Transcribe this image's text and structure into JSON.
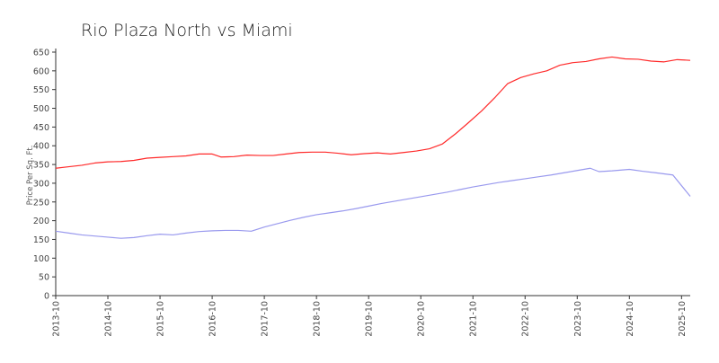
{
  "chart_data": {
    "type": "line",
    "title": "Rio Plaza North vs Miami",
    "xlabel": "",
    "ylabel": "Price Per Sq. Ft.",
    "ylim": [
      0,
      650
    ],
    "xlim": [
      "2013-10",
      "2025-12"
    ],
    "yticks": [
      0,
      50,
      100,
      150,
      200,
      250,
      300,
      350,
      400,
      450,
      500,
      550,
      600,
      650
    ],
    "xticks": [
      "2013-10",
      "2014-10",
      "2015-10",
      "2016-10",
      "2017-10",
      "2018-10",
      "2019-10",
      "2020-10",
      "2021-10",
      "2022-10",
      "2023-10",
      "2024-10",
      "2025-10"
    ],
    "grid": false,
    "legend": "none",
    "series": [
      {
        "color": "#ff2a2a",
        "points": [
          [
            "2013-10",
            340
          ],
          [
            "2014-01",
            344
          ],
          [
            "2014-04",
            348
          ],
          [
            "2014-07",
            354
          ],
          [
            "2014-10",
            357
          ],
          [
            "2015-01",
            358
          ],
          [
            "2015-04",
            361
          ],
          [
            "2015-07",
            367
          ],
          [
            "2015-10",
            369
          ],
          [
            "2016-01",
            371
          ],
          [
            "2016-04",
            373
          ],
          [
            "2016-07",
            378
          ],
          [
            "2016-10",
            378
          ],
          [
            "2016-12",
            370
          ],
          [
            "2017-03",
            371
          ],
          [
            "2017-06",
            375
          ],
          [
            "2017-09",
            374
          ],
          [
            "2017-12",
            374
          ],
          [
            "2018-03",
            378
          ],
          [
            "2018-06",
            382
          ],
          [
            "2018-09",
            383
          ],
          [
            "2018-12",
            383
          ],
          [
            "2019-03",
            380
          ],
          [
            "2019-06",
            376
          ],
          [
            "2019-09",
            379
          ],
          [
            "2019-12",
            381
          ],
          [
            "2020-03",
            378
          ],
          [
            "2020-06",
            382
          ],
          [
            "2020-09",
            386
          ],
          [
            "2020-12",
            392
          ],
          [
            "2021-03",
            405
          ],
          [
            "2021-06",
            432
          ],
          [
            "2021-09",
            462
          ],
          [
            "2021-12",
            493
          ],
          [
            "2022-03",
            528
          ],
          [
            "2022-06",
            566
          ],
          [
            "2022-09",
            582
          ],
          [
            "2022-12",
            592
          ],
          [
            "2023-03",
            600
          ],
          [
            "2023-06",
            615
          ],
          [
            "2023-09",
            622
          ],
          [
            "2023-12",
            625
          ],
          [
            "2024-03",
            632
          ],
          [
            "2024-06",
            637
          ],
          [
            "2024-09",
            632
          ],
          [
            "2024-12",
            631
          ],
          [
            "2025-03",
            626
          ],
          [
            "2025-06",
            624
          ],
          [
            "2025-09",
            630
          ],
          [
            "2025-12",
            628
          ]
        ]
      },
      {
        "color": "#9999ee",
        "points": [
          [
            "2013-10",
            172
          ],
          [
            "2014-01",
            167
          ],
          [
            "2014-04",
            162
          ],
          [
            "2014-07",
            159
          ],
          [
            "2014-10",
            156
          ],
          [
            "2015-01",
            153
          ],
          [
            "2015-04",
            155
          ],
          [
            "2015-07",
            160
          ],
          [
            "2015-10",
            164
          ],
          [
            "2016-01",
            162
          ],
          [
            "2016-04",
            167
          ],
          [
            "2016-07",
            171
          ],
          [
            "2016-10",
            173
          ],
          [
            "2017-01",
            174
          ],
          [
            "2017-04",
            174
          ],
          [
            "2017-07",
            172
          ],
          [
            "2017-10",
            183
          ],
          [
            "2018-01",
            192
          ],
          [
            "2018-04",
            201
          ],
          [
            "2018-07",
            209
          ],
          [
            "2018-10",
            216
          ],
          [
            "2019-01",
            221
          ],
          [
            "2019-04",
            226
          ],
          [
            "2019-07",
            232
          ],
          [
            "2019-10",
            239
          ],
          [
            "2020-01",
            246
          ],
          [
            "2020-04",
            252
          ],
          [
            "2020-07",
            258
          ],
          [
            "2020-10",
            264
          ],
          [
            "2021-01",
            270
          ],
          [
            "2021-04",
            276
          ],
          [
            "2021-07",
            283
          ],
          [
            "2021-10",
            290
          ],
          [
            "2022-01",
            296
          ],
          [
            "2022-04",
            302
          ],
          [
            "2022-07",
            307
          ],
          [
            "2022-10",
            312
          ],
          [
            "2023-01",
            317
          ],
          [
            "2023-04",
            322
          ],
          [
            "2023-07",
            328
          ],
          [
            "2023-10",
            334
          ],
          [
            "2024-01",
            340
          ],
          [
            "2024-03",
            331
          ],
          [
            "2024-06",
            333
          ],
          [
            "2024-10",
            337
          ],
          [
            "2025-01",
            332
          ],
          [
            "2025-04",
            328
          ],
          [
            "2025-08",
            322
          ],
          [
            "2025-12",
            265
          ]
        ]
      }
    ]
  }
}
